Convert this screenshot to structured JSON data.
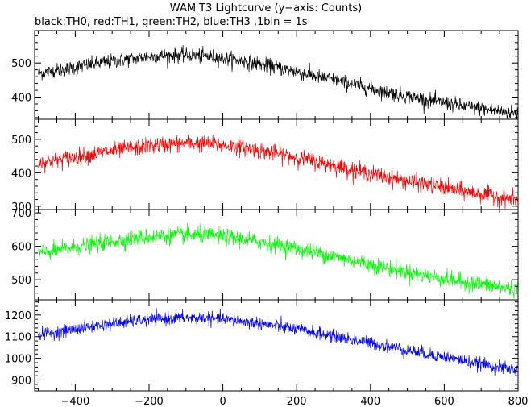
{
  "chart_data": {
    "type": "line",
    "title": "WAM T3 Lightcurve (y−axis: Counts)",
    "subtitle": "black:TH0, red:TH1, green:TH2, blue:TH3 ,1bin = 1s",
    "xlim": [
      -510,
      800
    ],
    "x_ticks": [
      -400,
      -200,
      0,
      200,
      400,
      600,
      800
    ],
    "x_tick_labels": [
      "−400",
      "−200",
      "0",
      "200",
      "400",
      "600",
      "800"
    ],
    "panels": [
      {
        "name": "TH0",
        "color": "#000000",
        "ylim": [
          335,
          595
        ],
        "y_ticks": [
          400,
          500
        ],
        "x": [
          -500,
          -450,
          -400,
          -350,
          -300,
          -250,
          -200,
          -150,
          -100,
          -50,
          0,
          50,
          100,
          150,
          200,
          250,
          300,
          350,
          400,
          450,
          500,
          550,
          600,
          650,
          700,
          750,
          800
        ],
        "values": [
          470,
          478,
          488,
          497,
          505,
          512,
          518,
          522,
          523,
          520,
          515,
          507,
          497,
          486,
          474,
          462,
          450,
          438,
          426,
          414,
          402,
          392,
          383,
          374,
          366,
          358,
          352
        ]
      },
      {
        "name": "TH1",
        "color": "#ff0000",
        "ylim": [
          290,
          560
        ],
        "y_ticks": [
          300,
          400,
          500
        ],
        "x": [
          -500,
          -450,
          -400,
          -350,
          -300,
          -250,
          -200,
          -150,
          -100,
          -50,
          0,
          50,
          100,
          150,
          200,
          250,
          300,
          350,
          400,
          450,
          500,
          550,
          600,
          650,
          700,
          750,
          800
        ],
        "values": [
          430,
          438,
          447,
          456,
          465,
          473,
          480,
          485,
          488,
          487,
          483,
          476,
          467,
          457,
          446,
          434,
          422,
          410,
          398,
          386,
          375,
          365,
          355,
          345,
          336,
          327,
          318
        ]
      },
      {
        "name": "TH2",
        "color": "#00ff00",
        "ylim": [
          440,
          710
        ],
        "y_ticks": [
          500,
          600,
          700
        ],
        "x": [
          -500,
          -450,
          -400,
          -350,
          -300,
          -250,
          -200,
          -150,
          -100,
          -50,
          0,
          50,
          100,
          150,
          200,
          250,
          300,
          350,
          400,
          450,
          500,
          550,
          600,
          650,
          700,
          750,
          800
        ],
        "values": [
          580,
          588,
          597,
          606,
          615,
          622,
          628,
          632,
          634,
          633,
          629,
          622,
          614,
          604,
          593,
          582,
          570,
          558,
          546,
          534,
          523,
          513,
          503,
          494,
          486,
          478,
          472
        ]
      },
      {
        "name": "TH3",
        "color": "#0000ff",
        "ylim": [
          850,
          1270
        ],
        "y_ticks": [
          900,
          1000,
          1100,
          1200
        ],
        "x": [
          -500,
          -450,
          -400,
          -350,
          -300,
          -250,
          -200,
          -150,
          -100,
          -50,
          0,
          50,
          100,
          150,
          200,
          250,
          300,
          350,
          400,
          450,
          500,
          550,
          600,
          650,
          700,
          750,
          800
        ],
        "values": [
          1110,
          1122,
          1135,
          1148,
          1160,
          1170,
          1178,
          1184,
          1186,
          1185,
          1180,
          1172,
          1161,
          1148,
          1134,
          1118,
          1102,
          1086,
          1070,
          1054,
          1038,
          1022,
          1006,
          990,
          974,
          958,
          944
        ]
      }
    ],
    "grid": false,
    "noise_amplitude_fraction": [
      0.09,
      0.1,
      0.1,
      0.075
    ]
  }
}
